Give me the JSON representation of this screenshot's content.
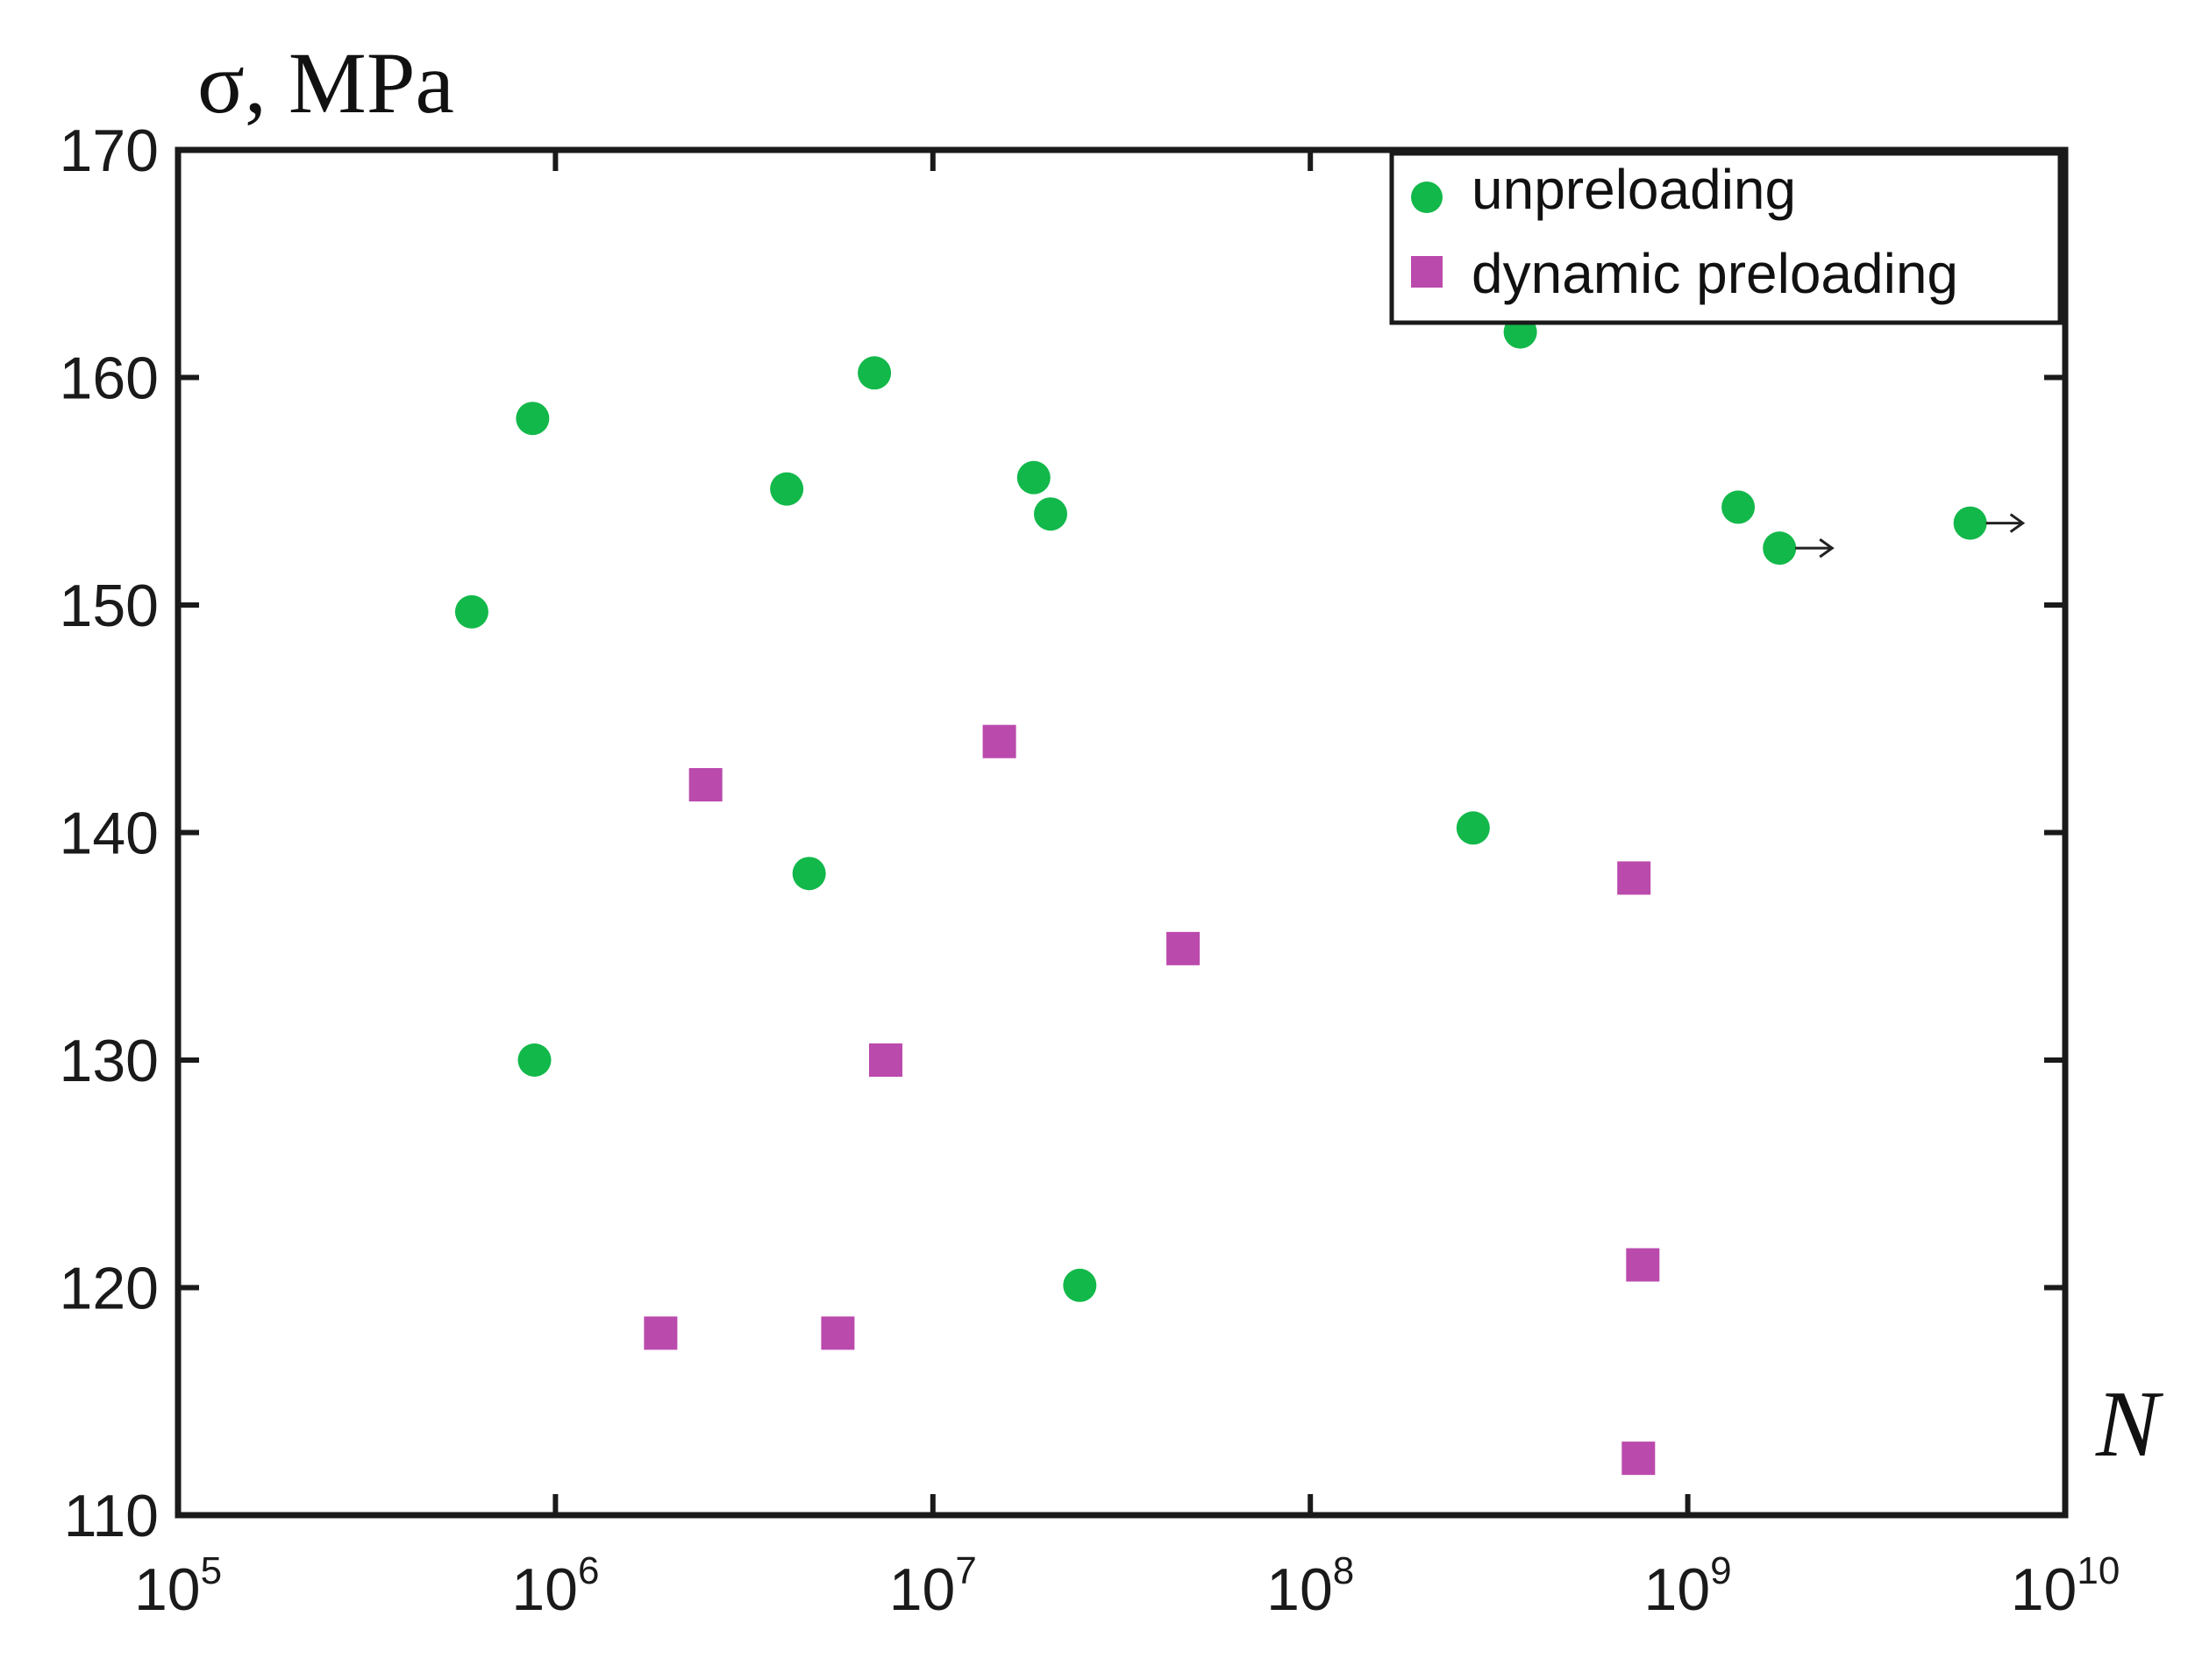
{
  "chart_data": {
    "type": "scatter",
    "title": "",
    "xlabel": "N",
    "ylabel": "σ, MPa",
    "x_scale": "log",
    "xlim": [
      100000,
      10000000000
    ],
    "ylim": [
      110,
      170
    ],
    "x_ticks": [
      {
        "base": "10",
        "exp": "5"
      },
      {
        "base": "10",
        "exp": "6"
      },
      {
        "base": "10",
        "exp": "7"
      },
      {
        "base": "10",
        "exp": "8"
      },
      {
        "base": "10",
        "exp": "9"
      },
      {
        "base": "10",
        "exp": "10"
      }
    ],
    "y_ticks": [
      "110",
      "120",
      "130",
      "140",
      "150",
      "160",
      "170"
    ],
    "grid": false,
    "legend_position": "top-right",
    "series": [
      {
        "name": "unpreloading",
        "marker": "circle",
        "color": "#12b84a",
        "points": [
          {
            "x": 600000,
            "y": 149.7
          },
          {
            "x": 870000,
            "y": 158.2
          },
          {
            "x": 880000,
            "y": 130.0
          },
          {
            "x": 4100000,
            "y": 155.1
          },
          {
            "x": 4700000,
            "y": 138.2
          },
          {
            "x": 7000000,
            "y": 160.2
          },
          {
            "x": 18500000,
            "y": 155.6
          },
          {
            "x": 20500000,
            "y": 154.0
          },
          {
            "x": 24500000,
            "y": 120.1
          },
          {
            "x": 270000000,
            "y": 140.2
          },
          {
            "x": 360000000,
            "y": 162.0
          },
          {
            "x": 1360000000,
            "y": 154.3
          },
          {
            "x": 1750000000,
            "y": 152.5,
            "runout": true
          },
          {
            "x": 5600000000,
            "y": 153.6,
            "runout": true
          }
        ]
      },
      {
        "name": "dynamic preloading",
        "marker": "square",
        "color": "#bb4aad",
        "points": [
          {
            "x": 1900000,
            "y": 118.0
          },
          {
            "x": 2500000,
            "y": 142.1
          },
          {
            "x": 5600000,
            "y": 118.0
          },
          {
            "x": 7500000,
            "y": 130.0
          },
          {
            "x": 15000000,
            "y": 144.0
          },
          {
            "x": 46000000,
            "y": 134.9
          },
          {
            "x": 720000000,
            "y": 138.0
          },
          {
            "x": 740000000,
            "y": 112.5
          },
          {
            "x": 760000000,
            "y": 121.0
          }
        ]
      }
    ]
  }
}
